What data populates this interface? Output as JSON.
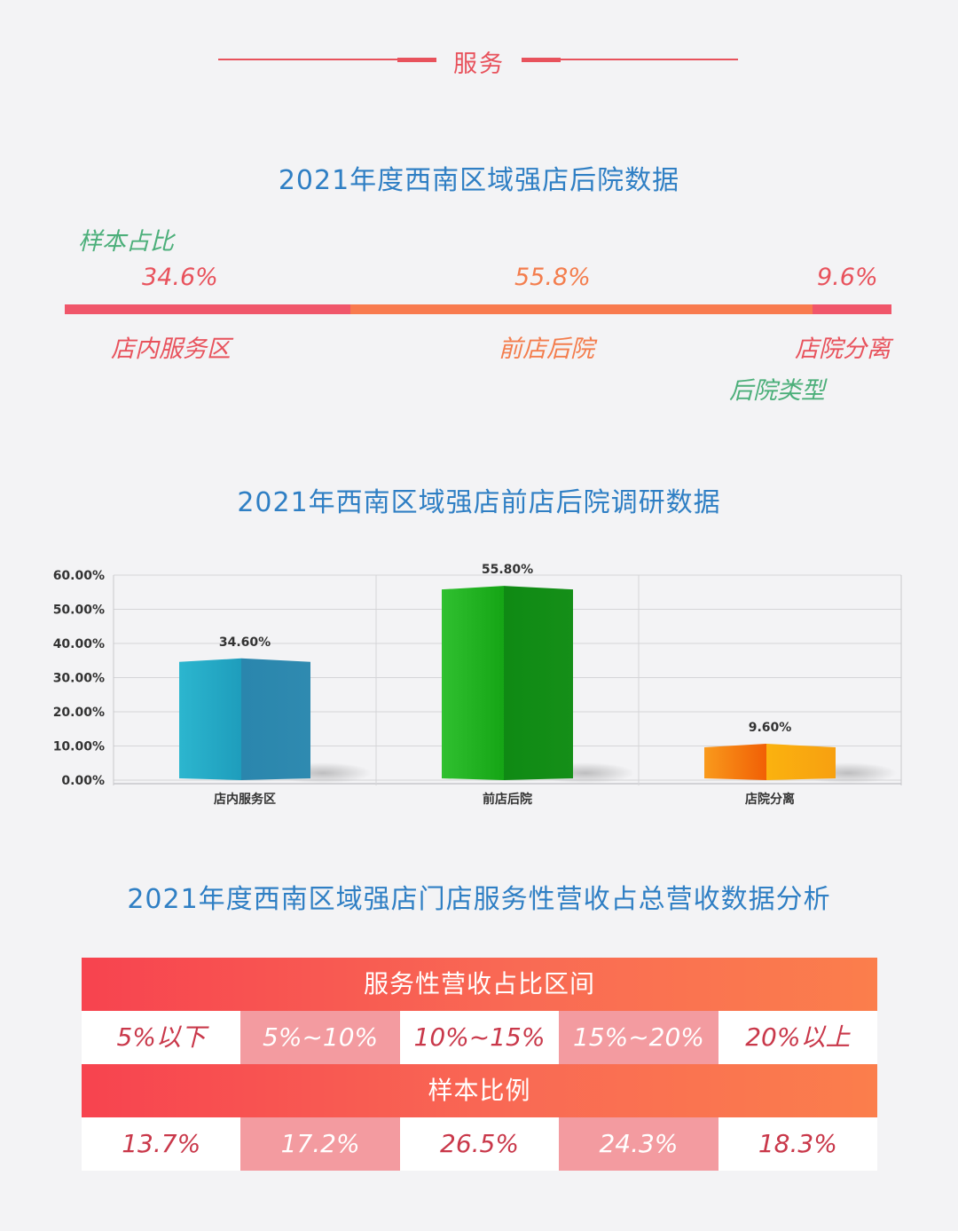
{
  "header": {
    "title": "服务"
  },
  "section1": {
    "title": "2021年度西南区域强店后院数据",
    "sample_label": "样本占比",
    "type_label": "后院类型",
    "segments": [
      {
        "label": "店内服务区",
        "pct_text": "34.6%",
        "value": 34.6,
        "color": "#f0566a"
      },
      {
        "label": "前店后院",
        "pct_text": "55.8%",
        "value": 55.8,
        "color": "#f87a4e"
      },
      {
        "label": "店院分离",
        "pct_text": "9.6%",
        "value": 9.6,
        "color": "#f0566a"
      }
    ]
  },
  "section2": {
    "title": "2021年西南区域强店前店后院调研数据"
  },
  "chart_data": {
    "type": "bar",
    "title": "",
    "categories": [
      "店内服务区",
      "前店后院",
      "店院分离"
    ],
    "values": [
      34.6,
      55.8,
      9.6
    ],
    "value_labels": [
      "34.60%",
      "55.80%",
      "9.60%"
    ],
    "y_ticks": [
      "0.00%",
      "10.00%",
      "20.00%",
      "30.00%",
      "40.00%",
      "50.00%",
      "60.00%"
    ],
    "ylim": [
      0,
      60
    ],
    "grid": true,
    "colors": [
      "#2a9bbf",
      "#1aa31a",
      "#f7900f"
    ]
  },
  "section3": {
    "title": "2021年度西南区域强店门店服务性营收占总营收数据分析",
    "range_header": "服务性营收占比区间",
    "ranges": [
      "5%以下",
      "5%~10%",
      "10%~15%",
      "15%~20%",
      "20%以上"
    ],
    "sample_header": "样本比例",
    "samples": [
      "13.7%",
      "17.2%",
      "26.5%",
      "24.3%",
      "18.3%"
    ]
  }
}
